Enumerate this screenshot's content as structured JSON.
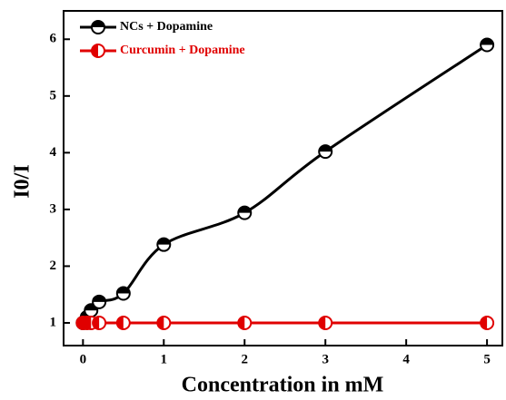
{
  "chart_data": {
    "type": "line",
    "x_label": "Concentration in mM",
    "y_label": "I0/I",
    "xlim": [
      -0.24,
      5.19
    ],
    "ylim": [
      0.6,
      6.5
    ],
    "xticks": [
      0,
      1,
      2,
      3,
      4,
      5
    ],
    "yticks": [
      1,
      2,
      3,
      4,
      5,
      6
    ],
    "legend": "upper left",
    "series": [
      {
        "name": "NCs + Dopamine",
        "color": "#000000",
        "x": [
          0,
          0.05,
          0.1,
          0.2,
          0.5,
          1,
          2,
          3,
          5
        ],
        "values": [
          1.0,
          1.1,
          1.22,
          1.37,
          1.52,
          2.38,
          2.94,
          4.02,
          5.9
        ]
      },
      {
        "name": "Curcumin + Dopamine",
        "color": "#e00000",
        "x": [
          0,
          0.05,
          0.1,
          0.2,
          0.5,
          1,
          2,
          3,
          5
        ],
        "values": [
          1,
          1,
          1,
          1,
          1,
          1,
          1,
          1,
          1
        ]
      }
    ]
  }
}
